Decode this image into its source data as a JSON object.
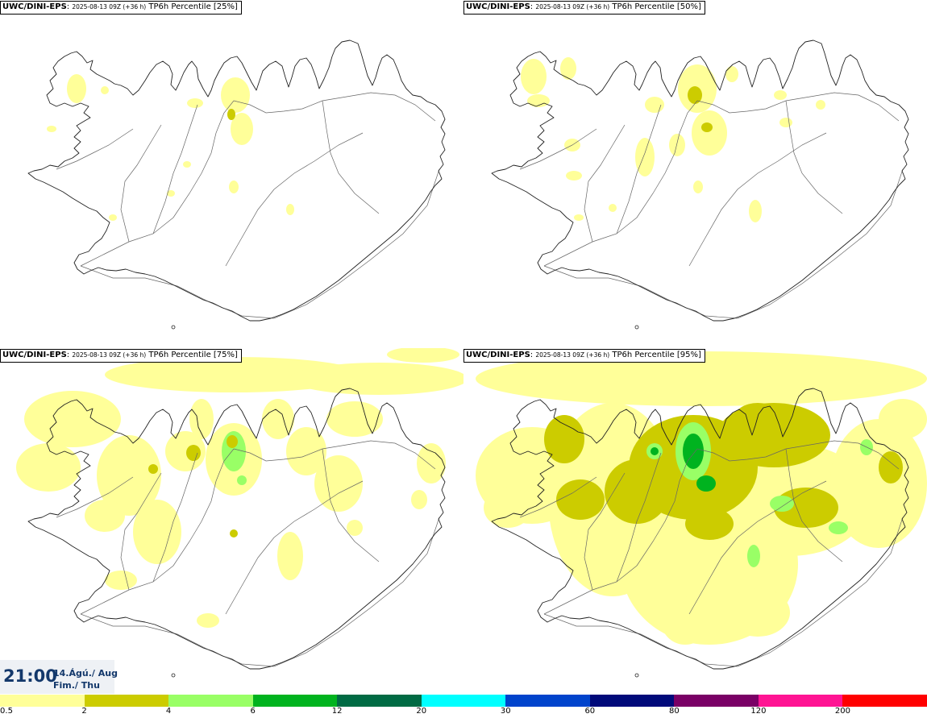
{
  "panels": [
    {
      "model": "UWC/DINI-EPS",
      "run": "2025-08-13 09Z (+36 h)",
      "variable": "TP6h Percentile [25%]"
    },
    {
      "model": "UWC/DINI-EPS",
      "run": "2025-08-13 09Z (+36 h)",
      "variable": "TP6h Percentile [50%]"
    },
    {
      "model": "UWC/DINI-EPS",
      "run": "2025-08-13 09Z (+36 h)",
      "variable": "TP6h Percentile [75%]"
    },
    {
      "model": "UWC/DINI-EPS",
      "run": "2025-08-13 09Z (+36 h)",
      "variable": "TP6h Percentile [95%]"
    }
  ],
  "valid_time": {
    "time": "21:00",
    "date_line1": "14.Ágú./ Aug",
    "date_line2": "Fim./ Thu"
  },
  "legend": {
    "colors": [
      "#ffff99",
      "#cccc00",
      "#99ff66",
      "#00b31f",
      "#006b44",
      "#00ffff",
      "#0044cc",
      "#000a7a",
      "#7a0066",
      "#ff1493",
      "#ff0000"
    ],
    "labels": [
      "0.5",
      "2",
      "4",
      "6",
      "12",
      "20",
      "30",
      "60",
      "80",
      "120",
      "200"
    ]
  }
}
